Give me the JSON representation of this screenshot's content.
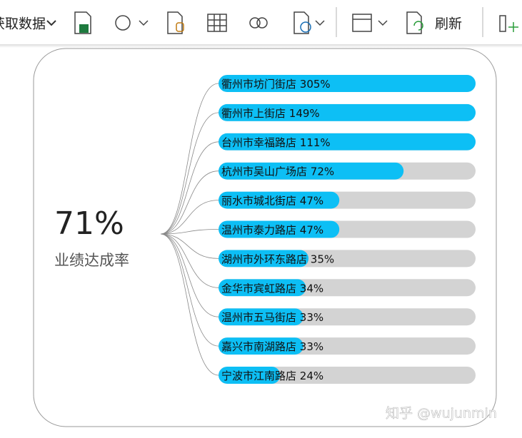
{
  "toolbar": {
    "items": [
      "获取数据",
      "刷新"
    ]
  },
  "summary": {
    "value": "71%",
    "label": "业绩达成率"
  },
  "watermark": "知乎 @wujunmin",
  "chart_data": {
    "type": "bar",
    "orientation": "horizontal",
    "categories": [
      "衢州市坊门街店",
      "衢州市上街店",
      "台州市幸福路店",
      "杭州市吴山广场店",
      "丽水市城北街店",
      "温州市泰力路店",
      "湖州市外环东路店",
      "金华市宾虹路店",
      "温州市五马街店",
      "嘉兴市南湖路店",
      "宁波市江南路店"
    ],
    "values": [
      305,
      149,
      111,
      72,
      47,
      47,
      35,
      34,
      33,
      33,
      24
    ],
    "value_labels": [
      "305%",
      "149%",
      "111%",
      "72%",
      "47%",
      "47%",
      "35%",
      "34%",
      "33%",
      "33%",
      "24%"
    ],
    "color": "#0dbff5",
    "track_color": "#d3d3d3",
    "xlim": [
      0,
      100
    ]
  }
}
